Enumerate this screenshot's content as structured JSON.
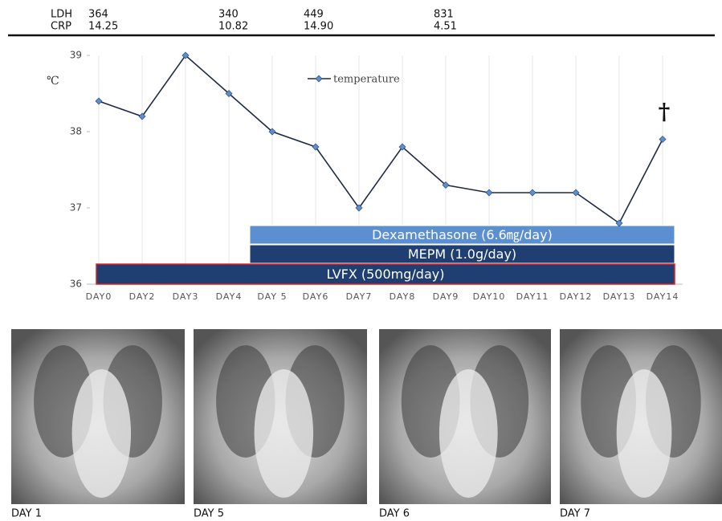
{
  "labs": {
    "rows": [
      {
        "name": "LDH",
        "values": [
          "364",
          "340",
          "449",
          "831"
        ]
      },
      {
        "name": "CRP",
        "values": [
          "14.25",
          "10.82",
          "14.90",
          "4.51"
        ]
      }
    ]
  },
  "chart_data": {
    "type": "line",
    "y_unit": "℃",
    "categories": [
      "DAY0",
      "DAY2",
      "DAY3",
      "DAY4",
      "DAY 5",
      "DAY6",
      "DAY7",
      "DAY8",
      "DAY9",
      "DAY10",
      "DAY11",
      "DAY12",
      "DAY13",
      "DAY14"
    ],
    "series": [
      {
        "name": "temperature",
        "color": "#1f2a44",
        "marker_color": "#5b8fd0",
        "values": [
          38.4,
          38.2,
          39.0,
          38.5,
          38.0,
          37.8,
          37.0,
          37.8,
          37.3,
          37.2,
          37.2,
          37.2,
          36.8,
          37.9
        ]
      }
    ],
    "ylim": [
      36,
      39
    ],
    "yticks": [
      36,
      37,
      38,
      39
    ],
    "annotation": "†",
    "treatments": [
      {
        "label": "Dexamethasone (6.6㎎/day)",
        "color": "#5b8fd0"
      },
      {
        "label": "MEPM (1.0g/day)",
        "color": "#1f3f73"
      },
      {
        "label": "LVFX (500mg/day)",
        "color": "#1f3f73",
        "border": "#e02020"
      }
    ]
  },
  "images": [
    {
      "label": "DAY 1"
    },
    {
      "label": "DAY 5"
    },
    {
      "label": "DAY 6"
    },
    {
      "label": "DAY 7"
    }
  ]
}
